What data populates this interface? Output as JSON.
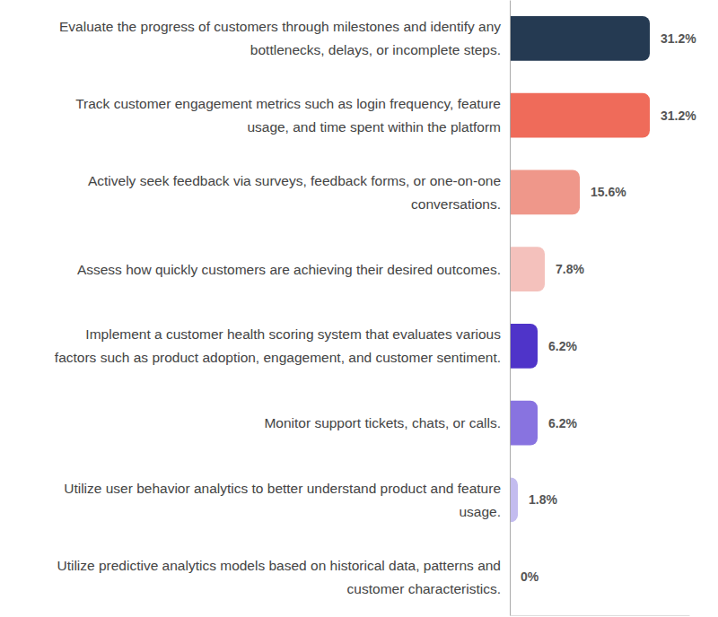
{
  "chart_data": {
    "type": "bar",
    "orientation": "horizontal",
    "categories": [
      "Evaluate the progress of customers through milestones and identify any bottlenecks, delays, or incomplete steps.",
      "Track customer engagement metrics such as login frequency, feature usage, and time spent within the platform",
      "Actively seek feedback via surveys, feedback forms, or one-on-one conversations.",
      "Assess how quickly customers are achieving their desired outcomes.",
      "Implement a customer health scoring system that evaluates various factors such as product adoption, engagement, and customer sentiment.",
      "Monitor support tickets, chats, or calls.",
      "Utilize user behavior analytics to better understand product and feature usage.",
      "Utilize predictive analytics models based on historical data, patterns and customer characteristics."
    ],
    "values": [
      31.2,
      31.2,
      15.6,
      7.8,
      6.2,
      6.2,
      1.8,
      0
    ],
    "value_labels": [
      "31.2%",
      "31.2%",
      "15.6%",
      "7.8%",
      "6.2%",
      "6.2%",
      "1.8%",
      "0%"
    ],
    "colors": [
      "#253a52",
      "#ef6b5a",
      "#ef978a",
      "#f4c1bc",
      "#4f34c9",
      "#8873e0",
      "#c3bcef",
      "#ddd8f5"
    ],
    "xlim": [
      0,
      40
    ],
    "tick_labels": "y",
    "data_labels": true
  }
}
